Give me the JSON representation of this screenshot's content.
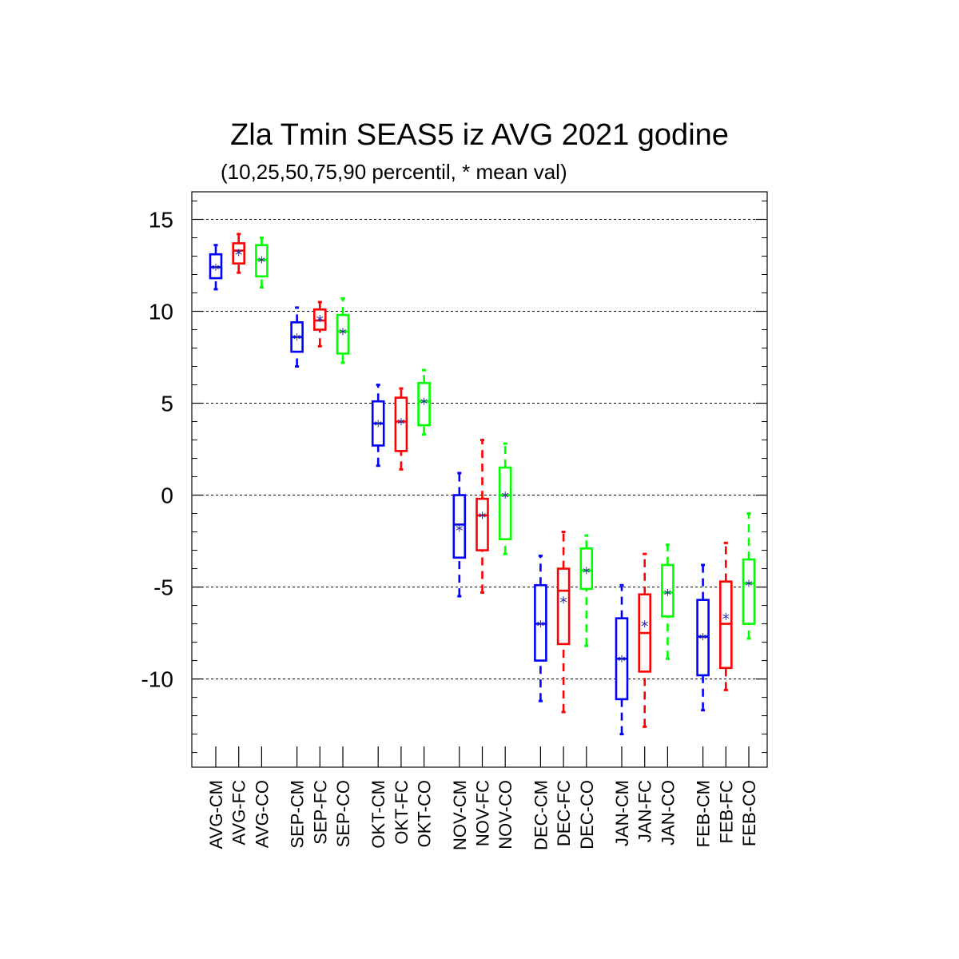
{
  "chart_data": {
    "type": "boxplot",
    "title": "Zla Tmin SEAS5 iz AVG 2021 godine",
    "subtitle": "(10,25,50,75,90 percentil, * mean val)",
    "xlabel": "",
    "ylabel": "",
    "ylim": [
      -14.8,
      16.5
    ],
    "y_ticks": [
      15,
      10,
      5,
      0,
      -5,
      -10
    ],
    "grid": "horizontal dashed",
    "series_colors": {
      "CM": "#0000ff",
      "FC": "#ff0000",
      "CO": "#00ff00"
    },
    "categories": [
      "AVG-CM",
      "AVG-FC",
      "AVG-CO",
      "SEP-CM",
      "SEP-FC",
      "SEP-CO",
      "OKT-CM",
      "OKT-FC",
      "OKT-CO",
      "NOV-CM",
      "NOV-FC",
      "NOV-CO",
      "DEC-CM",
      "DEC-FC",
      "DEC-CO",
      "JAN-CM",
      "JAN-FC",
      "JAN-CO",
      "FEB-CM",
      "FEB-FC",
      "FEB-CO"
    ],
    "boxes": [
      {
        "label": "AVG-CM",
        "group": "CM",
        "p10": 11.2,
        "p25": 11.8,
        "p50": 12.4,
        "p75": 13.1,
        "p90": 13.6,
        "mean": 12.4
      },
      {
        "label": "AVG-FC",
        "group": "FC",
        "p10": 12.1,
        "p25": 12.6,
        "p50": 13.3,
        "p75": 13.7,
        "p90": 14.2,
        "mean": 13.2
      },
      {
        "label": "AVG-CO",
        "group": "CO",
        "p10": 11.3,
        "p25": 11.9,
        "p50": 12.8,
        "p75": 13.6,
        "p90": 14.0,
        "mean": 12.8
      },
      {
        "label": "SEP-CM",
        "group": "CM",
        "p10": 7.0,
        "p25": 7.8,
        "p50": 8.6,
        "p75": 9.4,
        "p90": 10.2,
        "mean": 8.6
      },
      {
        "label": "SEP-FC",
        "group": "FC",
        "p10": 8.1,
        "p25": 9.0,
        "p50": 9.5,
        "p75": 10.1,
        "p90": 10.5,
        "mean": 9.6
      },
      {
        "label": "SEP-CO",
        "group": "CO",
        "p10": 7.2,
        "p25": 7.7,
        "p50": 8.9,
        "p75": 9.8,
        "p90": 10.7,
        "mean": 8.9
      },
      {
        "label": "OKT-CM",
        "group": "CM",
        "p10": 1.6,
        "p25": 2.7,
        "p50": 3.9,
        "p75": 5.1,
        "p90": 6.0,
        "mean": 3.9
      },
      {
        "label": "OKT-FC",
        "group": "FC",
        "p10": 1.4,
        "p25": 2.4,
        "p50": 4.0,
        "p75": 5.3,
        "p90": 5.8,
        "mean": 4.0
      },
      {
        "label": "OKT-CO",
        "group": "CO",
        "p10": 3.3,
        "p25": 3.8,
        "p50": 5.1,
        "p75": 6.1,
        "p90": 6.8,
        "mean": 5.1
      },
      {
        "label": "NOV-CM",
        "group": "CM",
        "p10": -5.5,
        "p25": -3.4,
        "p50": -1.6,
        "p75": 0.0,
        "p90": 1.2,
        "mean": -1.8
      },
      {
        "label": "NOV-FC",
        "group": "FC",
        "p10": -5.3,
        "p25": -3.0,
        "p50": -1.1,
        "p75": -0.2,
        "p90": 3.0,
        "mean": -1.1
      },
      {
        "label": "NOV-CO",
        "group": "CO",
        "p10": -3.2,
        "p25": -2.4,
        "p50": 0.0,
        "p75": 1.5,
        "p90": 2.8,
        "mean": 0.0
      },
      {
        "label": "DEC-CM",
        "group": "CM",
        "p10": -11.2,
        "p25": -9.0,
        "p50": -7.0,
        "p75": -4.9,
        "p90": -3.3,
        "mean": -7.0
      },
      {
        "label": "DEC-FC",
        "group": "FC",
        "p10": -11.8,
        "p25": -8.1,
        "p50": -5.2,
        "p75": -4.0,
        "p90": -2.0,
        "mean": -5.7
      },
      {
        "label": "DEC-CO",
        "group": "CO",
        "p10": -8.2,
        "p25": -5.1,
        "p50": -4.1,
        "p75": -2.9,
        "p90": -2.2,
        "mean": -4.1
      },
      {
        "label": "JAN-CM",
        "group": "CM",
        "p10": -13.0,
        "p25": -11.1,
        "p50": -8.9,
        "p75": -6.7,
        "p90": -4.9,
        "mean": -8.9
      },
      {
        "label": "JAN-FC",
        "group": "FC",
        "p10": -12.6,
        "p25": -9.6,
        "p50": -7.5,
        "p75": -5.4,
        "p90": -3.2,
        "mean": -7.0
      },
      {
        "label": "JAN-CO",
        "group": "CO",
        "p10": -8.9,
        "p25": -6.6,
        "p50": -5.3,
        "p75": -3.8,
        "p90": -2.7,
        "mean": -5.3
      },
      {
        "label": "FEB-CM",
        "group": "CM",
        "p10": -11.7,
        "p25": -9.8,
        "p50": -7.7,
        "p75": -5.7,
        "p90": -3.8,
        "mean": -7.7
      },
      {
        "label": "FEB-FC",
        "group": "FC",
        "p10": -10.6,
        "p25": -9.4,
        "p50": -7.0,
        "p75": -4.7,
        "p90": -2.6,
        "mean": -6.6
      },
      {
        "label": "FEB-CO",
        "group": "CO",
        "p10": -7.8,
        "p25": -7.0,
        "p50": -4.8,
        "p75": -3.5,
        "p90": -1.0,
        "mean": -4.8
      }
    ]
  }
}
